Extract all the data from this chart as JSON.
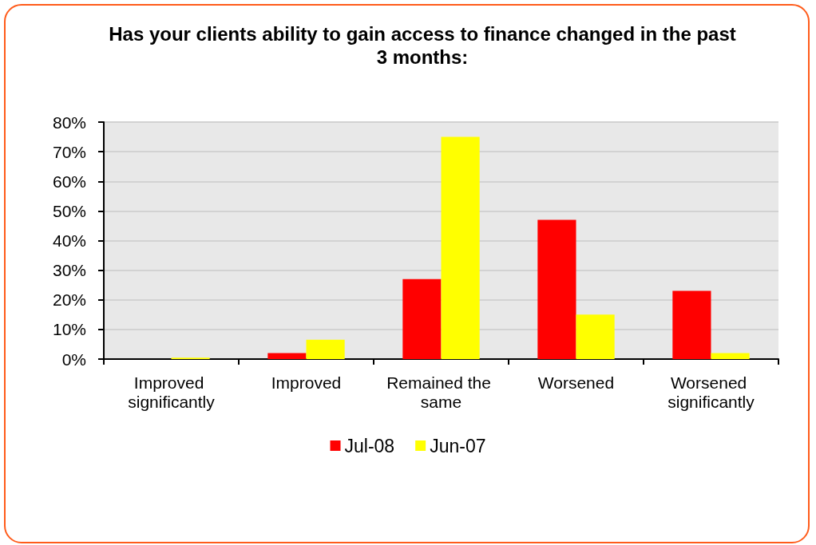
{
  "chart_data": {
    "type": "bar",
    "title": "Has your clients ability to gain access to finance changed in the past 3 months:",
    "categories": [
      "Improved significantly",
      "Improved",
      "Remained the same",
      "Worsened",
      "Worsened significantly"
    ],
    "series": [
      {
        "name": "Jul-08",
        "color": "#ff0000",
        "values": [
          0,
          2,
          27,
          47,
          23
        ]
      },
      {
        "name": "Jun-07",
        "color": "#ffff00",
        "values": [
          0.5,
          6.5,
          75,
          15,
          2
        ]
      }
    ],
    "ylim": [
      0,
      80
    ],
    "yticks": [
      {
        "value": 0,
        "label": "0%"
      },
      {
        "value": 10,
        "label": "10%"
      },
      {
        "value": 20,
        "label": "20%"
      },
      {
        "value": 30,
        "label": "30%"
      },
      {
        "value": 40,
        "label": "40%"
      },
      {
        "value": 50,
        "label": "50%"
      },
      {
        "value": 60,
        "label": "60%"
      },
      {
        "value": 70,
        "label": "70%"
      },
      {
        "value": 80,
        "label": "80%"
      }
    ],
    "grid": "y",
    "legend": "bottom"
  }
}
